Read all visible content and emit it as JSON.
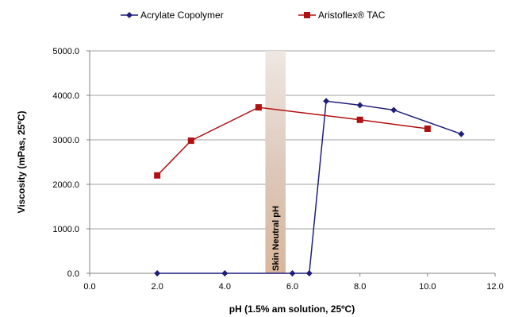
{
  "chart_data": {
    "type": "line",
    "xlabel": "pH (1.5% am solution, 25ºC)",
    "ylabel": "Viscosity (mPas, 25ºC)",
    "xlim": [
      0,
      12
    ],
    "ylim": [
      0,
      5000
    ],
    "x_ticks": [
      "0.0",
      "2.0",
      "4.0",
      "6.0",
      "8.0",
      "10.0",
      "12.0"
    ],
    "y_ticks": [
      "0.0",
      "1000.0",
      "2000.0",
      "3000.0",
      "4000.0",
      "5000.0"
    ],
    "grid": "horizontal",
    "legend_position": "top",
    "series": [
      {
        "name": "Acrylate Copolymer",
        "color": "#1f1f7a",
        "marker": "diamond",
        "points": [
          [
            2,
            0
          ],
          [
            4,
            0
          ],
          [
            6,
            0
          ],
          [
            6.5,
            0
          ],
          [
            7,
            3870
          ],
          [
            8,
            3780
          ],
          [
            9,
            3670
          ],
          [
            11,
            3130
          ]
        ]
      },
      {
        "name": "Aristoflex® TAC",
        "color": "#b01010",
        "marker": "square",
        "points": [
          [
            2,
            2200
          ],
          [
            3,
            2980
          ],
          [
            5,
            3730
          ],
          [
            8,
            3450
          ],
          [
            10,
            3250
          ]
        ]
      }
    ],
    "annotations": [
      {
        "text": "Skin Neutral pH",
        "x_range": [
          5.2,
          5.8
        ]
      }
    ]
  }
}
